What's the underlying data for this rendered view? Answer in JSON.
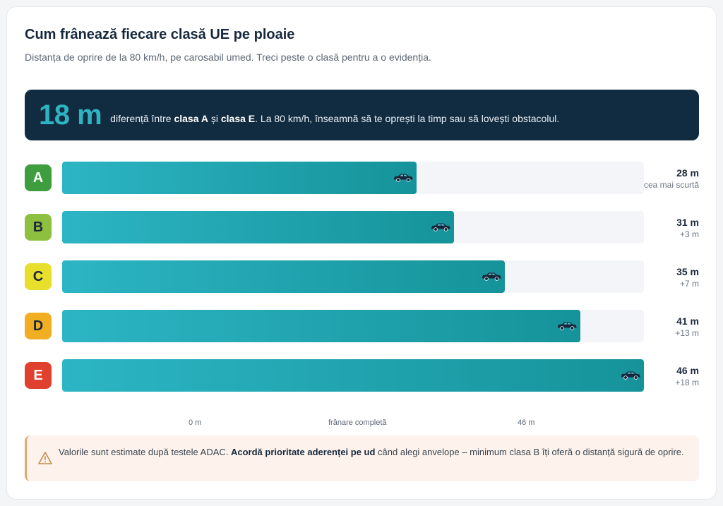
{
  "header": {
    "title": "Cum frânează fiecare clasă UE pe ploaie",
    "subtitle": "Distanța de oprire de la 80 km/h, pe carosabil umed. Treci peste o clasă pentru a o evidenția."
  },
  "banner": {
    "big": "18 m",
    "text_before": "diferență între ",
    "class_a": "clasa A",
    "text_and": " și ",
    "class_e": "clasa E",
    "text_after": ". La 80 km/h, înseamnă să te oprești la timp sau să lovești obstacolul."
  },
  "axis": {
    "left": "0 m",
    "middle": "frânare completă",
    "right": "46 m"
  },
  "note": {
    "icon": "warning-icon",
    "text_before": "Valorile sunt estimate după testele ADAC. ",
    "bold": "Acordă prioritate aderenței pe ud",
    "text_after": " când alegi anvelope – minimum clasa B îți oferă o distanță sigură de oprire."
  },
  "colors": {
    "bar_start": "#2cb5c4",
    "bar_end": "#16939a",
    "banner_bg": "#112b40",
    "banner_accent": "#2fb3c0",
    "car": "#16283d"
  },
  "chart_data": {
    "type": "bar",
    "orientation": "horizontal",
    "categories": [
      "A",
      "B",
      "C",
      "D",
      "E"
    ],
    "values": [
      28,
      31,
      35,
      41,
      46
    ],
    "unit": "m",
    "xlim": [
      0,
      46
    ],
    "value_labels": [
      "28 m",
      "31 m",
      "35 m",
      "41 m",
      "46 m"
    ],
    "sub_labels": [
      "cea mai scurtă",
      "+3 m",
      "+7 m",
      "+13 m",
      "+18 m"
    ],
    "badge_colors": [
      "#3e9d3e",
      "#8dc03f",
      "#e8de2c",
      "#f2ae22",
      "#e0412e"
    ],
    "badge_text_colors": [
      "#ffffff",
      "#1d2939",
      "#1d2939",
      "#1d2939",
      "#ffffff"
    ]
  }
}
